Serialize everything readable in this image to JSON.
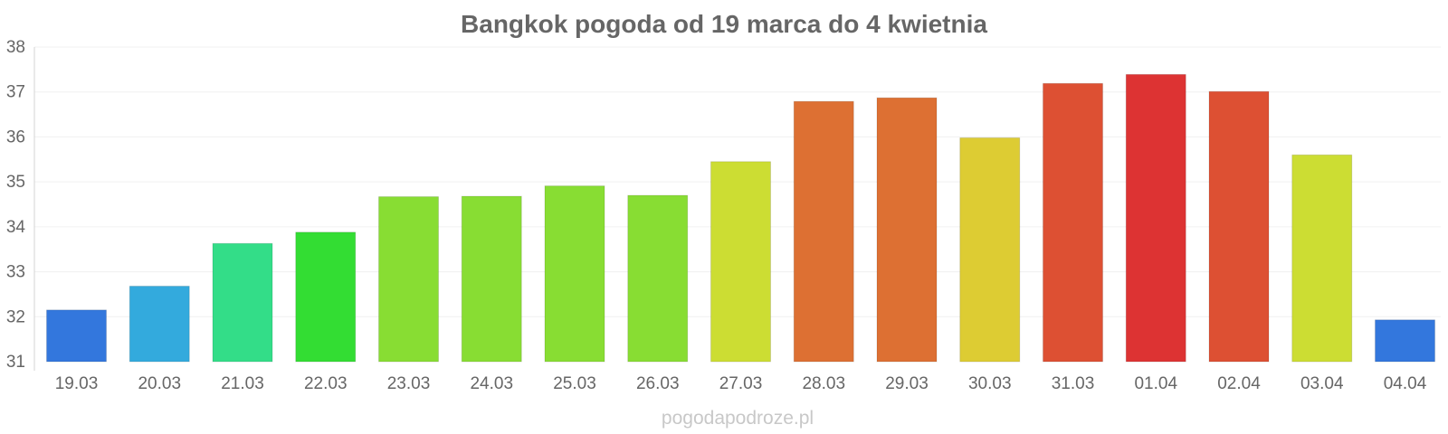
{
  "chart_data": {
    "type": "bar",
    "title": "Bangkok pogoda od 19 marca do 4 kwietnia",
    "xlabel": "",
    "ylabel": "",
    "categories": [
      "19.03",
      "20.03",
      "21.03",
      "22.03",
      "23.03",
      "24.03",
      "25.03",
      "26.03",
      "27.03",
      "28.03",
      "29.03",
      "30.03",
      "31.03",
      "01.04",
      "02.04",
      "03.04",
      "04.04"
    ],
    "values": [
      32.15,
      32.68,
      33.63,
      33.88,
      34.67,
      34.68,
      34.91,
      34.7,
      35.45,
      36.79,
      36.87,
      35.98,
      37.19,
      37.39,
      37.01,
      35.6,
      31.93
    ],
    "colors": [
      "#3377dd",
      "#33aadd",
      "#33dd88",
      "#33dd33",
      "#88dd33",
      "#88dd33",
      "#88dd33",
      "#88dd33",
      "#ccdd33",
      "#dd7033",
      "#dd7033",
      "#ddcc33",
      "#dd5033",
      "#dd3333",
      "#dd5033",
      "#ccdd33",
      "#3377dd"
    ],
    "yticks": [
      31,
      32,
      33,
      34,
      35,
      36,
      37,
      38
    ],
    "ylim": [
      31,
      38
    ],
    "grid": true,
    "legend": "none"
  },
  "watermark": "pogodapodroze.pl"
}
